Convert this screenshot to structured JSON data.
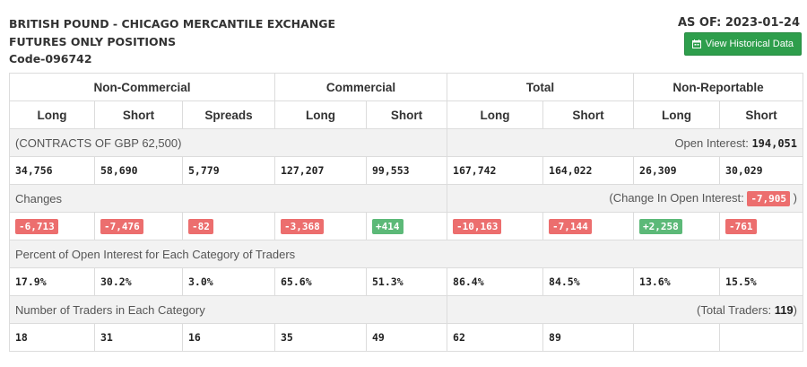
{
  "header": {
    "title_line1": "BRITISH POUND - CHICAGO MERCANTILE EXCHANGE",
    "title_line2": "FUTURES ONLY POSITIONS",
    "code": "Code-096742",
    "as_of": "AS OF: 2023-01-24",
    "history_button": "View Historical Data"
  },
  "groups": [
    "Non-Commercial",
    "Commercial",
    "Total",
    "Non-Reportable"
  ],
  "columns": [
    "Long",
    "Short",
    "Spreads",
    "Long",
    "Short",
    "Long",
    "Short",
    "Long",
    "Short"
  ],
  "contracts": {
    "label": "(CONTRACTS OF GBP 62,500)",
    "oi_label": "Open Interest: ",
    "oi_value": "194,051",
    "values": [
      "34,756",
      "58,690",
      "5,779",
      "127,207",
      "99,553",
      "167,742",
      "164,022",
      "26,309",
      "30,029"
    ]
  },
  "changes": {
    "label": "Changes",
    "oi_label": "(Change In Open Interest: ",
    "oi_value": "-7,905",
    "oi_close": " )",
    "values": [
      "-6,713",
      "-7,476",
      "-82",
      "-3,368",
      "+414",
      "-10,163",
      "-7,144",
      "+2,258",
      "-761"
    ]
  },
  "percent": {
    "label": "Percent of Open Interest for Each Category of Traders",
    "values": [
      "17.9%",
      "30.2%",
      "3.0%",
      "65.6%",
      "51.3%",
      "86.4%",
      "84.5%",
      "13.6%",
      "15.5%"
    ]
  },
  "traders": {
    "label": "Number of Traders in Each Category",
    "total_label": "(Total Traders: ",
    "total_value": "119",
    "total_close": ")",
    "values": [
      "18",
      "31",
      "16",
      "35",
      "49",
      "62",
      "89",
      "",
      ""
    ]
  },
  "colors": {
    "negative_badge": "#ec6e6e",
    "positive_badge": "#5cb978",
    "button_green": "#2e9e4c",
    "section_bg": "#f2f2f2"
  },
  "icons": {
    "history_button_icon": "calendar-icon"
  }
}
